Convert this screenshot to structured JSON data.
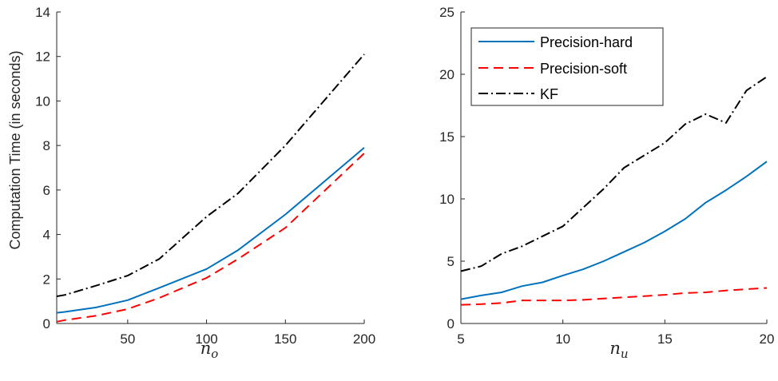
{
  "chart_data": [
    {
      "type": "line",
      "title": "",
      "ylabel": "Computation Time (in seconds)",
      "xlabel": {
        "base": "n",
        "sub": "o"
      },
      "xlim": [
        5,
        200
      ],
      "ylim": [
        0,
        14
      ],
      "xticks": [
        50,
        100,
        150,
        200
      ],
      "yticks": [
        0,
        2,
        4,
        6,
        8,
        10,
        12,
        14
      ],
      "x": [
        5,
        10,
        30,
        50,
        70,
        100,
        120,
        150,
        200
      ],
      "series": [
        {
          "name": "Precision-hard",
          "color": "#0072BD",
          "dash": "solid",
          "values": [
            0.48,
            0.52,
            0.72,
            1.05,
            1.6,
            2.45,
            3.3,
            4.9,
            7.9
          ]
        },
        {
          "name": "Precision-soft",
          "color": "#FF0000",
          "dash": "dashed",
          "values": [
            0.08,
            0.15,
            0.35,
            0.65,
            1.15,
            2.05,
            2.9,
            4.3,
            7.65
          ]
        },
        {
          "name": "KF",
          "color": "#000000",
          "dash": "dashdot",
          "values": [
            1.22,
            1.28,
            1.7,
            2.15,
            2.9,
            4.8,
            5.85,
            8.0,
            12.1
          ]
        }
      ]
    },
    {
      "type": "line",
      "title": "",
      "ylabel": "",
      "xlabel": {
        "base": "n",
        "sub": "u"
      },
      "xlim": [
        5,
        20
      ],
      "ylim": [
        0,
        25
      ],
      "xticks": [
        5,
        10,
        15,
        20
      ],
      "yticks": [
        0,
        5,
        10,
        15,
        20,
        25
      ],
      "x": [
        5,
        6,
        7,
        8,
        9,
        10,
        11,
        12,
        13,
        14,
        15,
        16,
        17,
        18,
        19,
        20
      ],
      "legend": "top-left",
      "series": [
        {
          "name": "Precision-hard",
          "color": "#0072BD",
          "dash": "solid",
          "values": [
            1.95,
            2.25,
            2.5,
            3.0,
            3.3,
            3.85,
            4.35,
            5.0,
            5.75,
            6.5,
            7.4,
            8.4,
            9.7,
            10.7,
            11.8,
            13.0
          ]
        },
        {
          "name": "Precision-soft",
          "color": "#FF0000",
          "dash": "dashed",
          "values": [
            1.5,
            1.55,
            1.65,
            1.85,
            1.85,
            1.85,
            1.9,
            2.0,
            2.1,
            2.2,
            2.3,
            2.45,
            2.5,
            2.65,
            2.75,
            2.85
          ]
        },
        {
          "name": "KF",
          "color": "#000000",
          "dash": "dashdot",
          "values": [
            4.2,
            4.6,
            5.6,
            6.2,
            7.0,
            7.8,
            9.3,
            10.8,
            12.5,
            13.5,
            14.5,
            16.0,
            16.8,
            16.1,
            18.7,
            19.8
          ]
        }
      ]
    }
  ]
}
